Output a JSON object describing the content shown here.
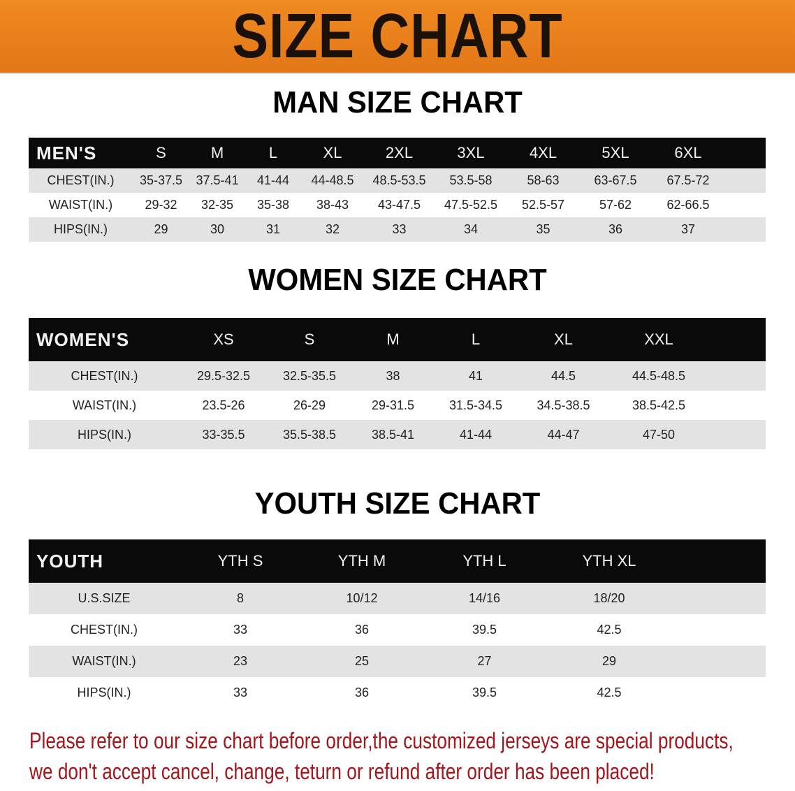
{
  "banner_title": "SIZE CHART",
  "men": {
    "title": "MAN SIZE CHART",
    "header": [
      "MEN'S",
      "S",
      "M",
      "L",
      "XL",
      "2XL",
      "3XL",
      "4XL",
      "5XL",
      "6XL"
    ],
    "rows": [
      [
        "CHEST(IN.)",
        "35-37.5",
        "37.5-41",
        "41-44",
        "44-48.5",
        "48.5-53.5",
        "53.5-58",
        "58-63",
        "63-67.5",
        "67.5-72"
      ],
      [
        "WAIST(IN.)",
        "29-32",
        "32-35",
        "35-38",
        "38-43",
        "43-47.5",
        "47.5-52.5",
        "52.5-57",
        "57-62",
        "62-66.5"
      ],
      [
        "HIPS(IN.)",
        "29",
        "30",
        "31",
        "32",
        "33",
        "34",
        "35",
        "36",
        "37"
      ]
    ]
  },
  "women": {
    "title": "WOMEN SIZE CHART",
    "header": [
      "WOMEN'S",
      "XS",
      "S",
      "M",
      "L",
      "XL",
      "XXL"
    ],
    "rows": [
      [
        "CHEST(IN.)",
        "29.5-32.5",
        "32.5-35.5",
        "38",
        "41",
        "44.5",
        "44.5-48.5"
      ],
      [
        "WAIST(IN.)",
        "23.5-26",
        "26-29",
        "29-31.5",
        "31.5-34.5",
        "34.5-38.5",
        "38.5-42.5"
      ],
      [
        "HIPS(IN.)",
        "33-35.5",
        "35.5-38.5",
        "38.5-41",
        "41-44",
        "44-47",
        "47-50"
      ]
    ]
  },
  "youth": {
    "title": "YOUTH SIZE CHART",
    "header": [
      "YOUTH",
      "YTH S",
      "YTH M",
      "YTH L",
      "YTH XL"
    ],
    "rows": [
      [
        "U.S.SIZE",
        "8",
        "10/12",
        "14/16",
        "18/20"
      ],
      [
        "CHEST(IN.)",
        "33",
        "36",
        "39.5",
        "42.5"
      ],
      [
        "WAIST(IN.)",
        "23",
        "25",
        "27",
        "29"
      ],
      [
        "HIPS(IN.)",
        "33",
        "36",
        "39.5",
        "42.5"
      ]
    ]
  },
  "note": {
    "line1": "Please refer to our size chart before order,the customized jerseys are special products,",
    "line2": "we don't accept cancel, change, teturn or refund after order has been placed!"
  }
}
